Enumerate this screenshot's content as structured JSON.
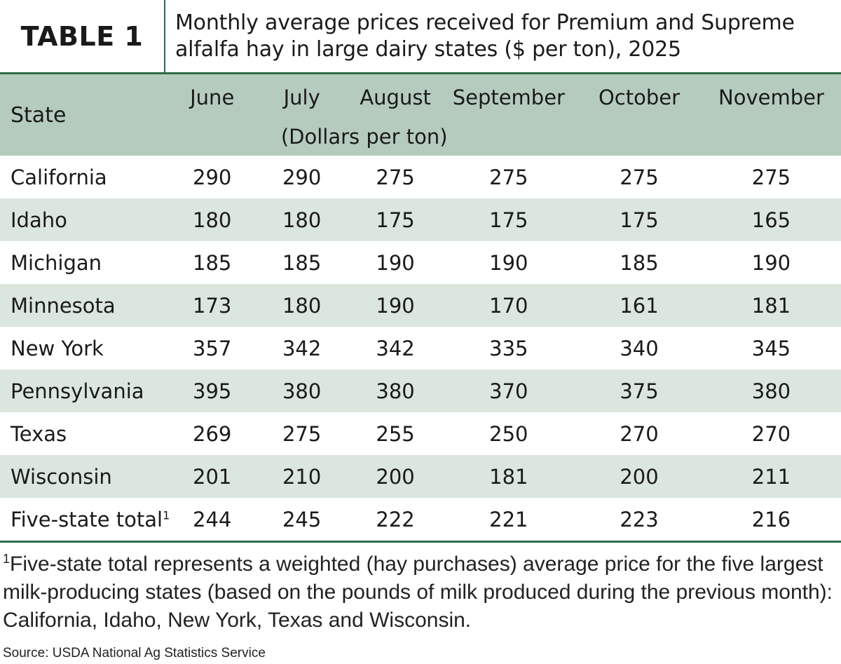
{
  "header": {
    "label": "TABLE 1",
    "title": "Monthly average prices received for Premium and Supreme alfalfa hay in large dairy states ($ per ton), 2025"
  },
  "table": {
    "state_header": "State",
    "months": [
      "June",
      "July",
      "August",
      "September",
      "October",
      "November"
    ],
    "unit_label": "(Dollars per ton)",
    "rows": [
      {
        "state": "California",
        "values": [
          "290",
          "290",
          "275",
          "275",
          "275",
          "275"
        ]
      },
      {
        "state": "Idaho",
        "values": [
          "180",
          "180",
          "175",
          "175",
          "175",
          "165"
        ]
      },
      {
        "state": "Michigan",
        "values": [
          "185",
          "185",
          "190",
          "190",
          "185",
          "190"
        ]
      },
      {
        "state": "Minnesota",
        "values": [
          "173",
          "180",
          "190",
          "170",
          "161",
          "181"
        ]
      },
      {
        "state": "New York",
        "values": [
          "357",
          "342",
          "342",
          "335",
          "340",
          "345"
        ]
      },
      {
        "state": "Pennsylvania",
        "values": [
          "395",
          "380",
          "380",
          "370",
          "375",
          "380"
        ]
      },
      {
        "state": "Texas",
        "values": [
          "269",
          "275",
          "255",
          "250",
          "270",
          "270"
        ]
      },
      {
        "state": "Wisconsin",
        "values": [
          "201",
          "210",
          "200",
          "181",
          "200",
          "211"
        ]
      },
      {
        "state": "Five-state total",
        "footnote_mark": "1",
        "values": [
          "244",
          "245",
          "222",
          "221",
          "223",
          "216"
        ]
      }
    ]
  },
  "footnote": {
    "mark": "1",
    "text": "Five-state total represents a weighted (hay purchases) average price for the five largest milk-producing states (based on the pounds of milk produced during the previous month): California, Idaho, New York, Texas and Wisconsin."
  },
  "source": "Source: USDA National Ag Statistics Service",
  "colors": {
    "accent": "#2f6b4a",
    "header_fill": "#b5cbbe",
    "stripe_fill": "#dbe6df"
  }
}
